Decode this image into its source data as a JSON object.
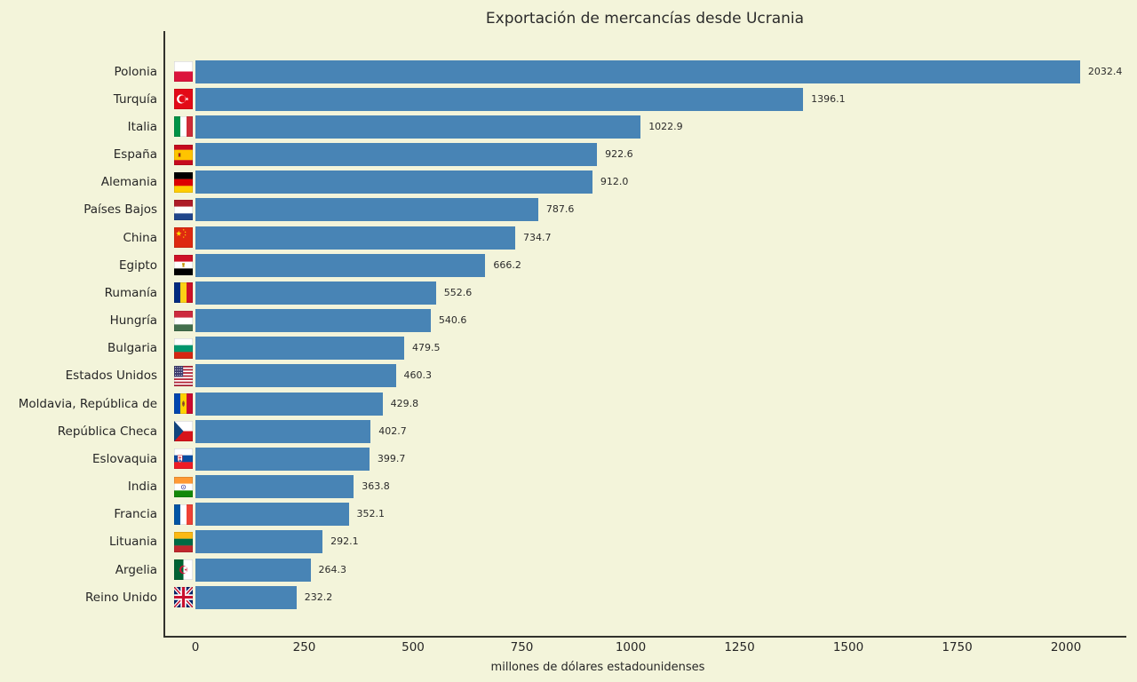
{
  "chart_data": {
    "type": "bar",
    "orientation": "horizontal",
    "title": "Exportación de mercancías desde Ucrania",
    "xlabel": "millones de dólares estadounidenses",
    "ylabel": "",
    "grid": false,
    "legend": null,
    "background_color": "#f3f4da",
    "bar_color": "#4884b5",
    "axis_color": "#32322c",
    "text_color": "#262626",
    "xlim": [
      0,
      2135
    ],
    "x_ticks": [
      0,
      250,
      500,
      750,
      1000,
      1250,
      1500,
      1750,
      2000
    ],
    "x_tick_labels": [
      "0",
      "250",
      "500",
      "750",
      "1000",
      "1250",
      "1500",
      "1750",
      "2000"
    ],
    "categories": [
      "Polonia",
      "Turquía",
      "Italia",
      "España",
      "Alemania",
      "Países Bajos",
      "China",
      "Egipto",
      "Rumanía",
      "Hungría",
      "Bulgaria",
      "Estados Unidos",
      "Moldavia, República de",
      "República Checa",
      "Eslovaquia",
      "India",
      "Francia",
      "Lituania",
      "Argelia",
      "Reino Unido"
    ],
    "values": [
      2032.4,
      1396.1,
      1022.9,
      922.6,
      912.0,
      787.6,
      734.7,
      666.2,
      552.6,
      540.6,
      479.5,
      460.3,
      429.8,
      402.7,
      399.7,
      363.8,
      352.1,
      292.1,
      264.3,
      232.2
    ],
    "value_labels": [
      "2032.4",
      "1396.1",
      "1022.9",
      "922.6",
      "912.0",
      "787.6",
      "734.7",
      "666.2",
      "552.6",
      "540.6",
      "479.5",
      "460.3",
      "429.8",
      "402.7",
      "399.7",
      "363.8",
      "352.1",
      "292.1",
      "264.3",
      "232.2"
    ],
    "flags": [
      "pl",
      "tr",
      "it",
      "es",
      "de",
      "nl",
      "cn",
      "eg",
      "ro",
      "hu",
      "bg",
      "us",
      "md",
      "cz",
      "sk",
      "in",
      "fr",
      "lt",
      "dz",
      "gb"
    ]
  }
}
